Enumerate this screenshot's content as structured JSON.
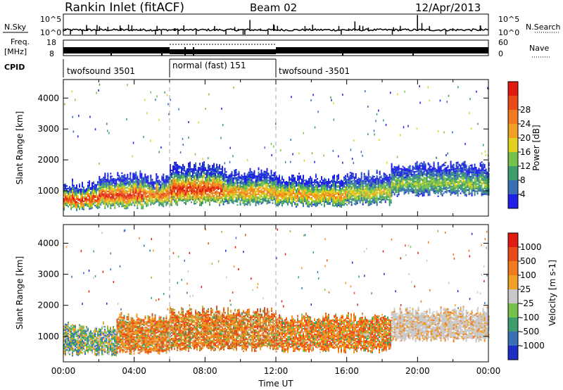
{
  "header": {
    "station": "Rankin Inlet (fitACF)",
    "beam": "Beam 02",
    "date": "12/Apr/2013"
  },
  "status": {
    "nsky_label": "N.Sky",
    "nsky_ticks": [
      "10^5",
      "10^0"
    ],
    "nsearch_label": "N.Search",
    "freq_label_line1": "Freq.",
    "freq_label_line2": "[MHz]",
    "freq_ticks": [
      "18",
      "8"
    ],
    "nave_label": "Nave",
    "nave_ticks": [
      "60",
      "0"
    ],
    "cpid_label": "CPID",
    "cpid_segments": [
      {
        "label": "twofsound 3501",
        "start_h": 0,
        "end_h": 6
      },
      {
        "label": "normal (fast) 151",
        "start_h": 6,
        "end_h": 12
      },
      {
        "label": "twofsound -3501",
        "start_h": 12,
        "end_h": 24
      }
    ]
  },
  "chart_data": [
    {
      "type": "heatmap",
      "title": "",
      "panel": "power",
      "xlabel": "",
      "ylabel": "Slant Range [km]",
      "xlim": [
        0,
        24
      ],
      "ylim": [
        180,
        4600
      ],
      "yticks": [
        1000,
        2000,
        3000,
        4000
      ],
      "colorbar": {
        "label": "Power [dB]",
        "ticks": [
          "4",
          "8",
          "12",
          "16",
          "20",
          "24",
          "28"
        ],
        "colors": [
          "#1f1fe6",
          "#3a6fb8",
          "#3d9c6b",
          "#77c24a",
          "#e0d21e",
          "#f0a022",
          "#f07a1f",
          "#e84a1a",
          "#e01b12"
        ]
      },
      "echo_bands": [
        {
          "start_h": 0.0,
          "end_h": 2.0,
          "lo_km": 450,
          "hi_km": 1200,
          "core": 28
        },
        {
          "start_h": 2.0,
          "end_h": 4.5,
          "lo_km": 500,
          "hi_km": 1500,
          "core": 28
        },
        {
          "start_h": 4.5,
          "end_h": 6.0,
          "lo_km": 550,
          "hi_km": 1400,
          "core": 24
        },
        {
          "start_h": 6.0,
          "end_h": 9.0,
          "lo_km": 600,
          "hi_km": 1800,
          "core": 28
        },
        {
          "start_h": 9.0,
          "end_h": 12.0,
          "lo_km": 600,
          "hi_km": 1600,
          "core": 20
        },
        {
          "start_h": 12.0,
          "end_h": 16.0,
          "lo_km": 550,
          "hi_km": 1400,
          "core": 20
        },
        {
          "start_h": 16.0,
          "end_h": 18.5,
          "lo_km": 600,
          "hi_km": 1500,
          "core": 16
        },
        {
          "start_h": 18.5,
          "end_h": 24.0,
          "lo_km": 900,
          "hi_km": 1800,
          "core": 12
        }
      ]
    },
    {
      "type": "heatmap",
      "title": "",
      "panel": "velocity",
      "xlabel": "Time UT",
      "ylabel": "Slant Range [km]",
      "xlim": [
        0,
        24
      ],
      "ylim": [
        180,
        4600
      ],
      "xticks": [
        "00:00",
        "04:00",
        "08:00",
        "12:00",
        "16:00",
        "20:00",
        "00:00"
      ],
      "yticks": [
        1000,
        2000,
        3000,
        4000
      ],
      "colorbar": {
        "label": "Velocity [m s-1]",
        "ticks": [
          "1000",
          "500",
          "100",
          "25",
          "-25",
          "-100",
          "-500",
          "-1000"
        ],
        "colors": [
          "#1d2fc2",
          "#3a6fb8",
          "#3d9c6b",
          "#77c24a",
          "#c8c8c8",
          "#f0a022",
          "#f07a1f",
          "#e84a1a",
          "#e01b12"
        ]
      },
      "echo_bands": [
        {
          "start_h": 0.0,
          "end_h": 3.0,
          "lo_km": 450,
          "hi_km": 1300,
          "mean_v": 50
        },
        {
          "start_h": 3.0,
          "end_h": 6.0,
          "lo_km": 500,
          "hi_km": 1600,
          "mean_v": -100
        },
        {
          "start_h": 6.0,
          "end_h": 12.0,
          "lo_km": 600,
          "hi_km": 1800,
          "mean_v": -300
        },
        {
          "start_h": 12.0,
          "end_h": 18.5,
          "lo_km": 550,
          "hi_km": 1600,
          "mean_v": -200
        },
        {
          "start_h": 18.5,
          "end_h": 24.0,
          "lo_km": 900,
          "hi_km": 1800,
          "mean_v": 0
        }
      ]
    }
  ]
}
